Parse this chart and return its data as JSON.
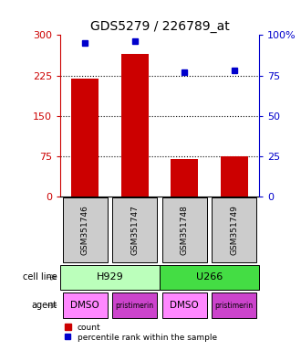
{
  "title": "GDS5279 / 226789_at",
  "samples": [
    "GSM351746",
    "GSM351747",
    "GSM351748",
    "GSM351749"
  ],
  "counts": [
    220,
    265,
    70,
    75
  ],
  "percentiles": [
    95,
    96,
    77,
    78
  ],
  "left_ylim": [
    0,
    300
  ],
  "right_ylim": [
    0,
    100
  ],
  "left_ticks": [
    0,
    75,
    150,
    225,
    300
  ],
  "right_ticks": [
    0,
    25,
    50,
    75,
    100
  ],
  "left_tick_labels": [
    "0",
    "75",
    "150",
    "225",
    "300"
  ],
  "right_tick_labels": [
    "0",
    "25",
    "50",
    "75",
    "100%"
  ],
  "hline_values": [
    75,
    150,
    225
  ],
  "bar_color": "#cc0000",
  "dot_color": "#0000cc",
  "cell_lines": [
    [
      "H929",
      2
    ],
    [
      "U266",
      2
    ]
  ],
  "cell_line_colors": [
    "#bbffbb",
    "#44dd44"
  ],
  "agents": [
    "DMSO",
    "pristimerin",
    "DMSO",
    "pristimerin"
  ],
  "agent_color_dmso": "#ff88ff",
  "agent_color_pristimerin": "#cc44cc",
  "legend_bar_color": "#cc0000",
  "legend_dot_color": "#0000cc",
  "bg_color": "#ffffff",
  "sample_box_color": "#cccccc",
  "left_axis_color": "#cc0000",
  "right_axis_color": "#0000cc"
}
